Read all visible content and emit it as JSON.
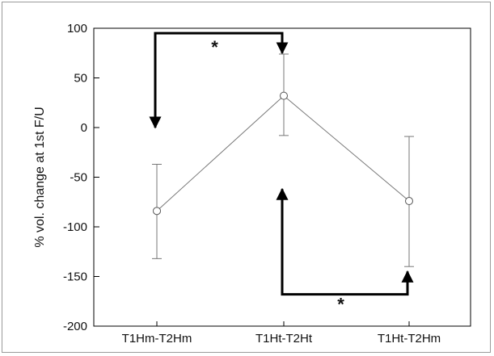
{
  "chart_data": {
    "type": "line",
    "title": "",
    "xlabel": "",
    "ylabel": "% vol. change at 1st F/U",
    "ylim": [
      -200,
      100
    ],
    "yticks": [
      100,
      50,
      0,
      -50,
      -100,
      -150,
      -200
    ],
    "categories": [
      "T1Hm-T2Hm",
      "T1Ht-T2Ht",
      "T1Ht-T2Hm"
    ],
    "series": [
      {
        "values": [
          -84,
          32,
          -74
        ],
        "error_low": [
          -132,
          -8,
          -140
        ],
        "error_high": [
          -37,
          74,
          -9
        ]
      }
    ],
    "grid": false,
    "annotations": [
      {
        "text": "*",
        "from_category": "T1Hm-T2Hm",
        "to_category": "T1Ht-T2Ht",
        "bracket_at": 95,
        "arrow_to_from_end": 0,
        "arrow_to_to_end": 75
      },
      {
        "text": "*",
        "from_category": "T1Ht-T2Ht",
        "to_category": "T1Ht-T2Hm",
        "bracket_at": -168,
        "arrow_to_from_end": -62,
        "arrow_to_to_end": -145
      }
    ],
    "colors": {
      "line": "#777777",
      "marker_fill": "#ffffff",
      "errorbar": "#777777",
      "annotation": "#000000"
    }
  }
}
